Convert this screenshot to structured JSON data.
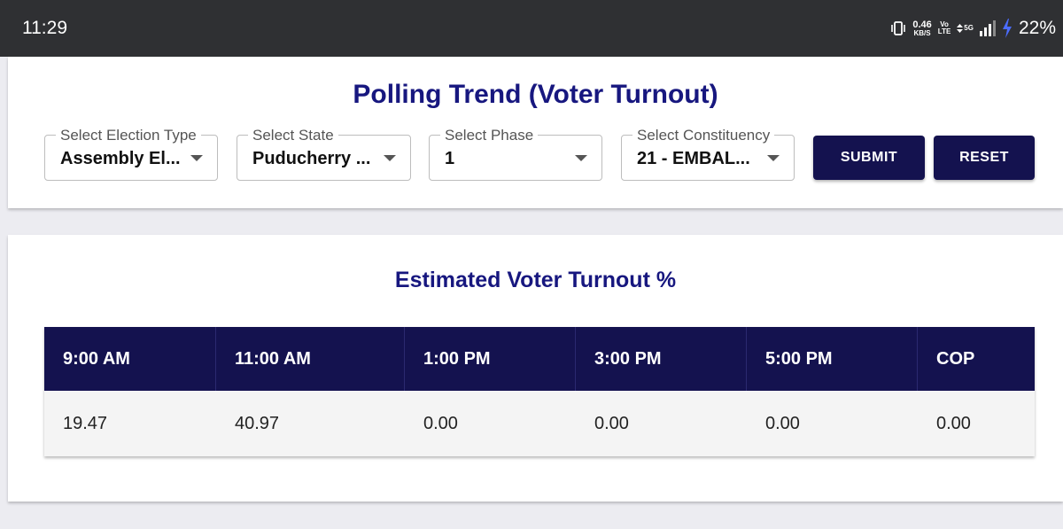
{
  "status_bar": {
    "time": "11:29",
    "net_speed": "0.46",
    "net_speed_unit": "KB/S",
    "volte_top": "Vo",
    "volte_bottom": "LTE",
    "network": "5G",
    "battery": "22%",
    "icons": [
      "vibrate-icon",
      "data-arrows-icon",
      "signal-icon",
      "charging-bolt-icon"
    ]
  },
  "filter_card": {
    "title": "Polling Trend (Voter Turnout)",
    "selects": [
      {
        "label": "Select Election Type",
        "value": "Assembly El..."
      },
      {
        "label": "Select State",
        "value": "Puducherry ..."
      },
      {
        "label": "Select Phase",
        "value": "1"
      },
      {
        "label": "Select Constituency",
        "value": "21 - EMBAL..."
      }
    ],
    "submit_label": "SUBMIT",
    "reset_label": "RESET"
  },
  "turnout_card": {
    "title": "Estimated Voter Turnout %",
    "columns": [
      "9:00 AM",
      "11:00 AM",
      "1:00 PM",
      "3:00 PM",
      "5:00 PM",
      "COP"
    ],
    "rows": [
      [
        "19.47",
        "40.97",
        "0.00",
        "0.00",
        "0.00",
        "0.00"
      ]
    ]
  },
  "colors": {
    "accent": "#17177f",
    "header_bg": "#14124f",
    "status_bar_bg": "#2f3033",
    "charging": "#4b6cff"
  }
}
